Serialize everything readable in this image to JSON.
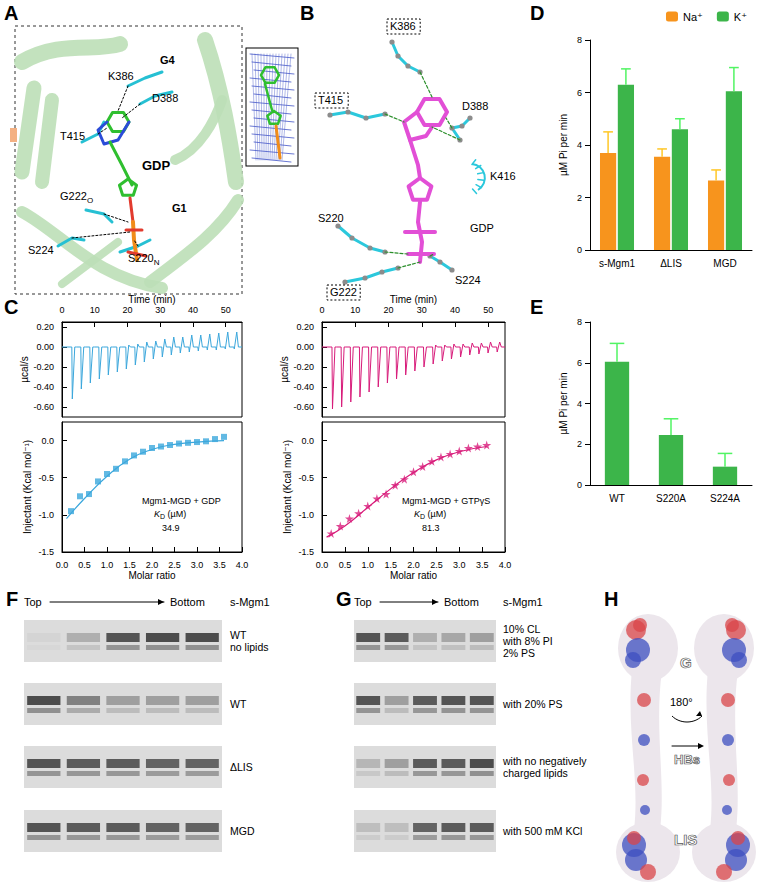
{
  "panels": {
    "A": {
      "letter": "A",
      "labels": [
        {
          "text": "G4",
          "bold": true
        },
        {
          "text": "K386"
        },
        {
          "text": "D388"
        },
        {
          "text": "T415"
        },
        {
          "text": "GDP",
          "bold": true
        },
        {
          "text": "G222",
          "sub": "O"
        },
        {
          "text": "G1",
          "bold": true
        },
        {
          "text": "S220",
          "sub": "N"
        },
        {
          "text": "S224"
        }
      ]
    },
    "B": {
      "letter": "B",
      "labels": [
        {
          "text": "K386",
          "boxed": true
        },
        {
          "text": "T415",
          "boxed": true
        },
        {
          "text": "D388"
        },
        {
          "text": "K416"
        },
        {
          "text": "S220"
        },
        {
          "text": "GDP"
        },
        {
          "text": "S224"
        },
        {
          "text": "G222",
          "boxed": true
        }
      ]
    },
    "C": {
      "letter": "C"
    },
    "D": {
      "letter": "D"
    },
    "E": {
      "letter": "E"
    },
    "F": {
      "letter": "F",
      "top": "Top",
      "bottom": "Bottom",
      "protein": "s-Mgm1",
      "rows": [
        {
          "label": [
            "WT",
            "no lipids"
          ],
          "bands": [
            0.05,
            0.3,
            0.9,
            0.95,
            0.95
          ]
        },
        {
          "label": [
            "WT"
          ],
          "bands": [
            0.95,
            0.6,
            0.4,
            0.4,
            0.4
          ]
        },
        {
          "label": [
            "ΔLIS"
          ],
          "bands": [
            0.9,
            0.85,
            0.85,
            0.8,
            0.8
          ]
        },
        {
          "label": [
            "MGD"
          ],
          "bands": [
            0.9,
            0.85,
            0.85,
            0.8,
            0.8
          ]
        }
      ]
    },
    "G": {
      "letter": "G",
      "top": "Top",
      "bottom": "Bottom",
      "protein": "s-Mgm1",
      "rows": [
        {
          "label": [
            "10% CL",
            "with 8% PI",
            "2% PS"
          ],
          "bands": [
            0.9,
            0.85,
            0.3,
            0.35,
            0.4
          ]
        },
        {
          "label": [
            "with 20% PS"
          ],
          "bands": [
            0.9,
            0.4,
            0.85,
            0.9,
            0.9
          ]
        },
        {
          "label": [
            "with no negatively",
            "charged lipids"
          ],
          "bands": [
            0.25,
            0.4,
            0.85,
            0.85,
            0.95
          ]
        },
        {
          "label": [
            "with 500 mM KCl"
          ],
          "bands": [
            0.2,
            0.2,
            0.8,
            0.85,
            0.85
          ]
        }
      ]
    },
    "H": {
      "letter": "H",
      "labels": [
        "G",
        "HBs",
        "LIS"
      ],
      "rotation": "180°"
    }
  },
  "chart_data": [
    {
      "type": "line",
      "x_label": "Time (min)",
      "y_label": "µcal/s",
      "color": "#3ba7dc",
      "grid": false,
      "xlim": [
        0,
        55
      ],
      "xticks": [
        0,
        10,
        20,
        30,
        40,
        50
      ],
      "ylim": [
        -0.7,
        0.25
      ],
      "yticks": [
        {
          "value": 0.2,
          "label": "0.20"
        },
        {
          "value": 0,
          "label": "0.00"
        },
        {
          "value": -0.2,
          "label": "-0.20"
        },
        {
          "value": -0.4,
          "label": "-0.40"
        },
        {
          "value": -0.6,
          "label": "-0.60"
        }
      ],
      "x": [
        0,
        3,
        3.15,
        3.9,
        4.4,
        5.75,
        5.9,
        6.65,
        7.15,
        8.5,
        8.65,
        9.4,
        9.9,
        11.25,
        11.4,
        12.15,
        12.65,
        14,
        14.15,
        14.9,
        15.4,
        16.75,
        16.9,
        17.65,
        18.15,
        19.5,
        19.65,
        20.4,
        20.9,
        22.25,
        22.4,
        23.15,
        23.65,
        25,
        25.15,
        25.9,
        26.4,
        27.75,
        27.9,
        28.65,
        29.15,
        30.5,
        30.65,
        31.4,
        31.9,
        33.25,
        33.4,
        34.15,
        34.65,
        36,
        36.15,
        36.9,
        37.4,
        38.75,
        38.9,
        39.65,
        40.15,
        41.5,
        41.65,
        42.4,
        42.9,
        44.25,
        44.4,
        45.15,
        45.65,
        47,
        47.15,
        47.9,
        48.4,
        49.75,
        49.9,
        50.65,
        51.15,
        52.5,
        52.65,
        53.4,
        53.9,
        55
      ],
      "values": [
        0,
        0,
        -0.52,
        0,
        0,
        0,
        -0.42,
        0,
        0,
        0,
        -0.36,
        0,
        0,
        0,
        -0.32,
        0,
        0,
        0,
        -0.28,
        0,
        0,
        0,
        -0.25,
        0,
        0,
        0,
        -0.22,
        0.02,
        0,
        0,
        -0.18,
        0.03,
        0,
        0,
        -0.15,
        0.05,
        0,
        0,
        -0.12,
        0.06,
        0,
        0,
        -0.1,
        0.08,
        0,
        0,
        -0.08,
        0.1,
        0,
        0,
        -0.06,
        0.1,
        0,
        0,
        -0.05,
        0.12,
        0,
        0,
        -0.04,
        0.12,
        0,
        0,
        -0.03,
        0.13,
        0,
        0,
        -0.03,
        0.14,
        0,
        0,
        -0.02,
        0.15,
        0,
        0,
        -0.02,
        0.15,
        0,
        0
      ]
    },
    {
      "type": "scatter",
      "x_label": "Molar ratio",
      "y_label": "Injectant (Kcal mol⁻¹)",
      "color": "#3ba7dc",
      "marker": "square",
      "grid": false,
      "xlim": [
        0,
        4
      ],
      "xticks": [
        {
          "value": 0,
          "label": "0.0"
        },
        0.5,
        {
          "value": 1,
          "label": "1.0"
        },
        1.5,
        {
          "value": 2,
          "label": "2.0"
        },
        2.5,
        {
          "value": 3,
          "label": "3.0"
        },
        3.5,
        {
          "value": 4,
          "label": "4.0"
        }
      ],
      "ylim": [
        -1.5,
        0.25
      ],
      "yticks": [
        {
          "value": 0,
          "label": "0.0"
        },
        -0.5,
        {
          "value": -1,
          "label": "-1.0"
        },
        -1.5
      ],
      "x": [
        0.2,
        0.4,
        0.6,
        0.8,
        1.0,
        1.2,
        1.4,
        1.6,
        1.8,
        2.0,
        2.2,
        2.4,
        2.6,
        2.8,
        3.0,
        3.2,
        3.4,
        3.6
      ],
      "values": [
        -0.95,
        -0.75,
        -0.72,
        -0.55,
        -0.45,
        -0.38,
        -0.28,
        -0.2,
        -0.15,
        -0.1,
        -0.08,
        -0.06,
        -0.04,
        -0.03,
        -0.02,
        -0.01,
        0.02,
        0.05
      ],
      "fit": {
        "x": [
          0.1,
          0.5,
          1.0,
          1.5,
          2.0,
          2.5,
          3.0,
          3.6
        ],
        "values": [
          -1.05,
          -0.78,
          -0.48,
          -0.25,
          -0.12,
          -0.05,
          -0.02,
          0.0
        ]
      },
      "annotation": "Mgm1-MGD + GDP",
      "kd": {
        "symbol": "K",
        "sub": "D",
        "unit": "(µM)",
        "value": 34.9
      }
    },
    {
      "type": "line",
      "x_label": "Time (min)",
      "y_label": "µcal/s",
      "color": "#d81b7a",
      "grid": false,
      "xlim": [
        0,
        55
      ],
      "xticks": [
        0,
        10,
        20,
        30,
        40,
        50
      ],
      "ylim": [
        -0.7,
        0.25
      ],
      "yticks": [
        {
          "value": 0.2,
          "label": "0.20"
        },
        {
          "value": 0,
          "label": "0.00"
        },
        {
          "value": -0.2,
          "label": "-0.20"
        },
        {
          "value": -0.4,
          "label": "-0.40"
        },
        {
          "value": -0.6,
          "label": "-0.60"
        }
      ],
      "x": [
        0,
        3,
        3.15,
        3.9,
        4.4,
        5.75,
        5.9,
        6.65,
        7.15,
        8.5,
        8.65,
        9.4,
        9.9,
        11.25,
        11.4,
        12.15,
        12.65,
        14,
        14.15,
        14.9,
        15.4,
        16.75,
        16.9,
        17.65,
        18.15,
        19.5,
        19.65,
        20.4,
        20.9,
        22.25,
        22.4,
        23.15,
        23.65,
        25,
        25.15,
        25.9,
        26.4,
        27.75,
        27.9,
        28.65,
        29.15,
        30.5,
        30.65,
        31.4,
        31.9,
        33.25,
        33.4,
        34.15,
        34.65,
        36,
        36.15,
        36.9,
        37.4,
        38.75,
        38.9,
        39.65,
        40.15,
        41.5,
        41.65,
        42.4,
        42.9,
        44.25,
        44.4,
        45.15,
        45.65,
        47,
        47.15,
        47.9,
        48.4,
        49.75,
        49.9,
        50.65,
        51.15,
        52.5,
        52.65,
        53.4,
        53.9,
        55
      ],
      "values": [
        0,
        0,
        -0.62,
        0,
        0,
        0,
        -0.6,
        0,
        0,
        0,
        -0.55,
        0,
        0,
        0,
        -0.5,
        0,
        0,
        0,
        -0.45,
        0,
        0,
        0,
        -0.4,
        0,
        0,
        0,
        -0.36,
        0,
        0,
        0,
        -0.32,
        0,
        0,
        0,
        -0.28,
        0,
        0,
        0,
        -0.24,
        0,
        0,
        0,
        -0.2,
        0,
        0,
        0,
        -0.17,
        0.02,
        0,
        0,
        -0.14,
        0.02,
        0,
        0,
        -0.12,
        0.03,
        0,
        0,
        -0.1,
        0.03,
        0,
        0,
        -0.08,
        0.04,
        0,
        0,
        -0.07,
        0.04,
        0,
        0,
        -0.06,
        0.05,
        0,
        0,
        -0.05,
        0.05,
        0,
        0
      ]
    },
    {
      "type": "scatter",
      "x_label": "Molar ratio",
      "y_label": "Injectant (Kcal mol⁻¹)",
      "color": "#d81b7a",
      "marker": "star",
      "grid": false,
      "xlim": [
        0,
        4
      ],
      "xticks": [
        {
          "value": 0,
          "label": "0.0"
        },
        0.5,
        {
          "value": 1,
          "label": "1.0"
        },
        1.5,
        {
          "value": 2,
          "label": "2.0"
        },
        2.5,
        {
          "value": 3,
          "label": "3.0"
        },
        3.5,
        {
          "value": 4,
          "label": "4.0"
        }
      ],
      "ylim": [
        -1.5,
        0.25
      ],
      "yticks": [
        {
          "value": 0,
          "label": "0.0"
        },
        -0.5,
        {
          "value": -1,
          "label": "-1.0"
        },
        -1.5
      ],
      "x": [
        0.2,
        0.4,
        0.6,
        0.8,
        1.0,
        1.2,
        1.4,
        1.6,
        1.8,
        2.0,
        2.2,
        2.4,
        2.6,
        2.8,
        3.0,
        3.2,
        3.4,
        3.6
      ],
      "values": [
        -1.25,
        -1.15,
        -1.05,
        -0.98,
        -0.88,
        -0.78,
        -0.72,
        -0.6,
        -0.52,
        -0.42,
        -0.35,
        -0.28,
        -0.22,
        -0.18,
        -0.14,
        -0.1,
        -0.08,
        -0.06
      ],
      "fit": {
        "x": [
          0.1,
          0.5,
          1.0,
          1.5,
          2.0,
          2.5,
          3.0,
          3.6
        ],
        "values": [
          -1.3,
          -1.15,
          -0.9,
          -0.65,
          -0.43,
          -0.26,
          -0.15,
          -0.08
        ]
      },
      "annotation": "Mgm1-MGD + GTPγS",
      "kd": {
        "symbol": "K",
        "sub": "D",
        "unit": "(µM)",
        "value": 81.3
      }
    },
    {
      "type": "bar",
      "y_label": "µM Pi per min",
      "legend": "top",
      "grid": false,
      "categories": [
        "s-Mgm1",
        "ΔLIS",
        "MGD"
      ],
      "ylim": [
        0,
        8
      ],
      "yticks": [
        0,
        2,
        4,
        6,
        8
      ],
      "series": [
        {
          "name": "Na⁺",
          "color": "#f7941d",
          "values": [
            3.7,
            3.55,
            2.65
          ],
          "errors": [
            0.8,
            0.3,
            0.4
          ]
        },
        {
          "name": "K⁺",
          "color": "#3cb54a",
          "values": [
            6.3,
            4.6,
            6.05
          ],
          "errors": [
            0.6,
            0.4,
            0.9
          ]
        }
      ]
    },
    {
      "type": "bar",
      "y_label": "µM Pi per min",
      "grid": false,
      "color": "#3cb54a",
      "categories": [
        "WT",
        "S220A",
        "S224A"
      ],
      "ylim": [
        0,
        8
      ],
      "yticks": [
        0,
        2,
        4,
        6,
        8
      ],
      "values": [
        6.05,
        2.45,
        0.9
      ],
      "errors": [
        0.9,
        0.8,
        0.65
      ]
    }
  ]
}
